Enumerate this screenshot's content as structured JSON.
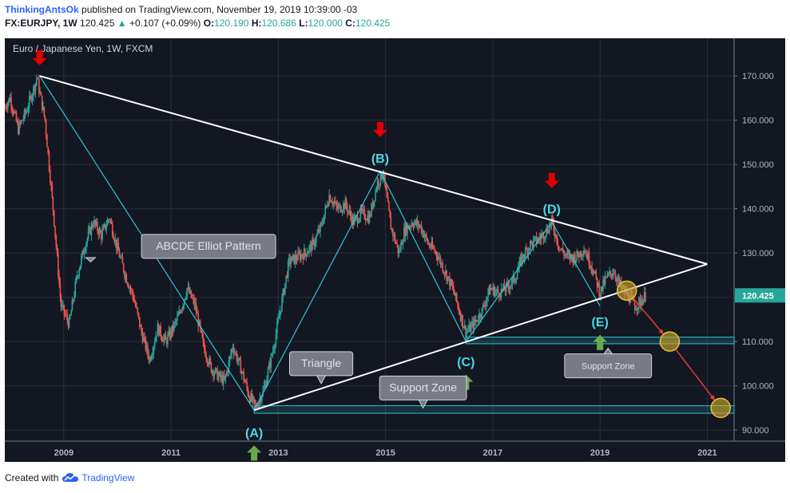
{
  "header": {
    "author": "ThinkingAntsOk",
    "published": "published on TradingView.com, November 19, 2019 10:39:00 -03",
    "symbol": "FX:EURJPY, 1W",
    "price": "120.425",
    "change_arrow": "▲",
    "change": "+0.107 (+0.09%)",
    "o_label": "O:",
    "o_value": "120.190",
    "h_label": "H:",
    "h_value": "120.686",
    "l_label": "L:",
    "l_value": "120.000",
    "c_label": "C:",
    "c_value": "120.425"
  },
  "footer": {
    "created_with": "Created with",
    "brand": "TradingView",
    "logo_icon": "tradingview-cloud-icon"
  },
  "colors": {
    "background": "#131722",
    "grid": "#2a2e39",
    "up": "#26a69a",
    "down": "#ef5350",
    "trendline": "#ffffff",
    "wave": "#29c5d6",
    "arrow_down": "#e00000",
    "arrow_up": "#6aa84f",
    "circle": "#c9a227",
    "forecast": "#e53935",
    "zone": "#26c6da",
    "price_label": "#26a69a"
  },
  "chart_data": {
    "type": "candlestick",
    "title": "Euro / Japanese Yen, 1W, FXCM",
    "x_tick_labels": [
      "2009",
      "2011",
      "2013",
      "2015",
      "2017",
      "2019",
      "2021"
    ],
    "y_tick_labels": [
      "170.000",
      "160.000",
      "150.000",
      "140.000",
      "130.000",
      "120.000",
      "110.000",
      "100.000",
      "90.000"
    ],
    "xlim": [
      2007.9,
      2021.5
    ],
    "ylim": [
      87.5,
      178.5
    ],
    "last_price": "120.425",
    "price_path": [
      [
        2007.9,
        163
      ],
      [
        2008.0,
        165
      ],
      [
        2008.15,
        158
      ],
      [
        2008.3,
        162
      ],
      [
        2008.5,
        169.5
      ],
      [
        2008.65,
        160
      ],
      [
        2008.8,
        140
      ],
      [
        2008.95,
        118
      ],
      [
        2009.1,
        114
      ],
      [
        2009.25,
        125
      ],
      [
        2009.4,
        132
      ],
      [
        2009.55,
        137
      ],
      [
        2009.7,
        134
      ],
      [
        2009.85,
        138
      ],
      [
        2010.0,
        131
      ],
      [
        2010.15,
        125
      ],
      [
        2010.3,
        120
      ],
      [
        2010.45,
        112
      ],
      [
        2010.6,
        106
      ],
      [
        2010.75,
        113
      ],
      [
        2010.9,
        110
      ],
      [
        2011.0,
        112
      ],
      [
        2011.15,
        116
      ],
      [
        2011.3,
        122
      ],
      [
        2011.45,
        118
      ],
      [
        2011.6,
        109
      ],
      [
        2011.75,
        104
      ],
      [
        2011.9,
        102
      ],
      [
        2012.0,
        101
      ],
      [
        2012.15,
        109
      ],
      [
        2012.3,
        104
      ],
      [
        2012.45,
        98
      ],
      [
        2012.58,
        95
      ],
      [
        2012.75,
        100
      ],
      [
        2012.9,
        108
      ],
      [
        2013.05,
        118
      ],
      [
        2013.2,
        128
      ],
      [
        2013.35,
        129
      ],
      [
        2013.5,
        130
      ],
      [
        2013.65,
        132
      ],
      [
        2013.8,
        136
      ],
      [
        2013.95,
        143
      ],
      [
        2014.1,
        140
      ],
      [
        2014.25,
        141
      ],
      [
        2014.4,
        137
      ],
      [
        2014.55,
        139
      ],
      [
        2014.7,
        138
      ],
      [
        2014.85,
        146
      ],
      [
        2014.95,
        148
      ],
      [
        2015.1,
        136
      ],
      [
        2015.25,
        130
      ],
      [
        2015.35,
        135
      ],
      [
        2015.5,
        137
      ],
      [
        2015.65,
        136
      ],
      [
        2015.8,
        132
      ],
      [
        2015.95,
        130
      ],
      [
        2016.1,
        126
      ],
      [
        2016.25,
        122
      ],
      [
        2016.4,
        116
      ],
      [
        2016.5,
        112
      ],
      [
        2016.65,
        114
      ],
      [
        2016.8,
        117
      ],
      [
        2016.95,
        122
      ],
      [
        2017.1,
        121
      ],
      [
        2017.25,
        122
      ],
      [
        2017.4,
        124
      ],
      [
        2017.55,
        129
      ],
      [
        2017.7,
        132
      ],
      [
        2017.85,
        133
      ],
      [
        2018.0,
        135
      ],
      [
        2018.1,
        137
      ],
      [
        2018.25,
        131
      ],
      [
        2018.4,
        129
      ],
      [
        2018.55,
        129
      ],
      [
        2018.7,
        131
      ],
      [
        2018.85,
        127
      ],
      [
        2019.0,
        121
      ],
      [
        2019.1,
        124
      ],
      [
        2019.25,
        126
      ],
      [
        2019.4,
        122
      ],
      [
        2019.55,
        120
      ],
      [
        2019.65,
        118
      ],
      [
        2019.75,
        119
      ],
      [
        2019.85,
        120.4
      ]
    ],
    "triangle_lines": [
      {
        "from": [
          2008.55,
          170
        ],
        "to": [
          2021.0,
          127.5
        ]
      },
      {
        "from": [
          2012.55,
          94.5
        ],
        "to": [
          2021.0,
          127.5
        ]
      }
    ],
    "elliott_wave": [
      [
        2008.55,
        170
      ],
      [
        2012.55,
        94.5
      ],
      [
        2014.9,
        148.5
      ],
      [
        2016.5,
        110
      ],
      [
        2018.1,
        137
      ],
      [
        2019.0,
        118
      ]
    ],
    "wave_labels": [
      {
        "text": "(A)",
        "x": 2012.55,
        "y": 89.5,
        "arrow": "up"
      },
      {
        "text": "(B)",
        "x": 2014.9,
        "y": 151.5,
        "arrow": "down"
      },
      {
        "text": "(C)",
        "x": 2016.5,
        "y": 105.5,
        "arrow": "up"
      },
      {
        "text": "(D)",
        "x": 2018.1,
        "y": 140,
        "arrow": "down"
      },
      {
        "text": "(E)",
        "x": 2019.0,
        "y": 114.5,
        "arrow": "up"
      }
    ],
    "extra_arrows": [
      {
        "x": 2008.55,
        "y": 174,
        "dir": "down"
      }
    ],
    "support_zones": [
      {
        "label": "Support Zone",
        "x_from": 2016.5,
        "x_to": 2021.5,
        "y_from": 109.5,
        "y_to": 111
      },
      {
        "label": "Support Zone",
        "x_from": 2012.55,
        "x_to": 2021.5,
        "y_from": 93.8,
        "y_to": 95.5
      }
    ],
    "callouts": [
      {
        "text": "ABCDE Elliot Pattern",
        "x": 2011.7,
        "y": 131.5,
        "pointer": [
          2009.5,
          128
        ]
      },
      {
        "text": "Triangle",
        "x": 2013.8,
        "y": 105,
        "pointer": [
          2013.8,
          100.5
        ]
      },
      {
        "text": "Support Zone",
        "x": 2015.7,
        "y": 99.5,
        "pointer": [
          2015.7,
          95
        ]
      },
      {
        "text": "Support Zone",
        "x": 2019.15,
        "y": 104.5,
        "pointer": [
          2019.15,
          108.5
        ]
      }
    ],
    "forecast_circles": [
      [
        2019.5,
        121.5
      ],
      [
        2020.3,
        110
      ],
      [
        2021.25,
        95
      ]
    ],
    "forecast_path": [
      [
        2019.5,
        121.5
      ],
      [
        2020.3,
        110
      ],
      [
        2021.25,
        95
      ]
    ]
  }
}
